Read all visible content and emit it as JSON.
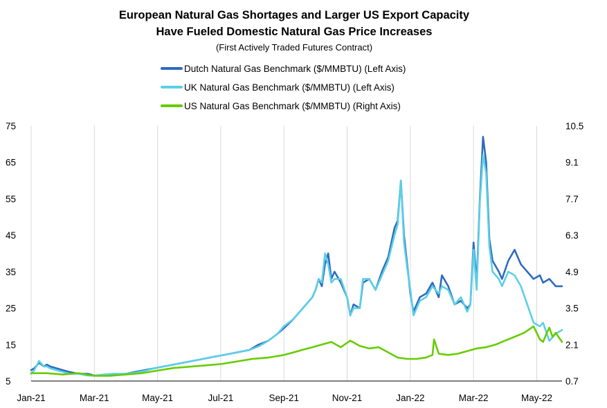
{
  "chart_data": {
    "type": "line",
    "title": [
      "European Natural Gas Shortages and Larger US Export Capacity",
      "Have Fueled Domestic Natural Gas Price Increases"
    ],
    "subtitle": "(First Actively Traded Futures Contract)",
    "left_axis": {
      "ticks": [
        "5",
        "15",
        "25",
        "35",
        "45",
        "55",
        "65",
        "75"
      ],
      "ylim": [
        5,
        75
      ]
    },
    "right_axis": {
      "ticks": [
        "0.7",
        "2.1",
        "3.5",
        "4.9",
        "6.3",
        "7.7",
        "9.1",
        "10.5"
      ],
      "ylim": [
        0.7,
        10.5
      ]
    },
    "x_axis": {
      "xlim": [
        0,
        16.8
      ],
      "tick_positions": [
        0,
        2,
        4,
        6,
        8,
        10,
        12,
        14,
        16
      ],
      "tick_labels": [
        "Jan-21",
        "Mar-21",
        "May-21",
        "Jul-21",
        "Sep-21",
        "Nov-21",
        "Jan-22",
        "Mar-22",
        "May-22"
      ]
    },
    "grid": "vertical",
    "x_unit": "months since Jan-21",
    "series": [
      {
        "name": "Dutch Natural Gas Benchmark ($/MMBTU) (Left Axis)",
        "axis": "left",
        "color": "#2e6bbf",
        "x": [
          0,
          0.1,
          0.25,
          0.4,
          0.5,
          0.6,
          0.8,
          1.0,
          1.2,
          1.5,
          1.8,
          2.0,
          2.3,
          2.6,
          3.0,
          3.3,
          3.6,
          3.9,
          4.2,
          4.5,
          4.8,
          5.1,
          5.4,
          5.7,
          6.0,
          6.3,
          6.6,
          6.9,
          7.2,
          7.5,
          7.8,
          8.0,
          8.3,
          8.6,
          8.9,
          9.0,
          9.1,
          9.2,
          9.3,
          9.4,
          9.5,
          9.6,
          9.8,
          10.0,
          10.1,
          10.2,
          10.4,
          10.5,
          10.7,
          10.9,
          11.1,
          11.3,
          11.5,
          11.6,
          11.7,
          11.8,
          11.9,
          12.0,
          12.1,
          12.3,
          12.5,
          12.7,
          12.9,
          13.0,
          13.2,
          13.4,
          13.6,
          13.8,
          13.9,
          14.0,
          14.1,
          14.2,
          14.3,
          14.4,
          14.5,
          14.6,
          14.8,
          14.9,
          15.1,
          15.3,
          15.5,
          15.7,
          15.9,
          16.1,
          16.2,
          16.4,
          16.6,
          16.8
        ],
        "values": [
          8,
          8.5,
          10,
          9,
          9.5,
          9,
          8.5,
          8,
          7.5,
          7,
          7,
          6.5,
          6.5,
          6.8,
          7,
          7.5,
          8,
          8.5,
          9,
          9.5,
          10,
          10.5,
          11,
          11.5,
          12,
          12.5,
          13,
          13.5,
          15,
          16,
          18,
          19.5,
          22,
          25,
          28,
          30,
          33,
          31,
          37,
          40,
          33,
          35,
          32,
          28,
          23,
          26,
          25,
          32,
          33,
          30,
          35,
          39,
          47,
          49,
          60,
          45,
          37,
          29,
          24,
          28,
          29,
          32,
          28,
          34,
          31,
          26,
          27,
          25,
          26,
          43,
          32,
          55,
          72,
          65,
          44,
          38,
          35,
          33,
          38,
          41,
          37,
          35,
          33,
          34,
          32,
          33,
          31,
          31
        ]
      },
      {
        "name": "UK Natural Gas Benchmark ($/MMBTU) (Left Axis)",
        "axis": "left",
        "color": "#5ccfe6",
        "x": [
          0,
          0.1,
          0.25,
          0.4,
          0.5,
          0.6,
          0.8,
          1.0,
          1.2,
          1.5,
          1.8,
          2.0,
          2.3,
          2.6,
          3.0,
          3.3,
          3.6,
          3.9,
          4.2,
          4.5,
          4.8,
          5.1,
          5.4,
          5.7,
          6.0,
          6.3,
          6.6,
          6.9,
          7.2,
          7.5,
          7.8,
          8.0,
          8.3,
          8.6,
          8.9,
          9.0,
          9.1,
          9.2,
          9.3,
          9.4,
          9.5,
          9.6,
          9.8,
          10.0,
          10.1,
          10.2,
          10.4,
          10.5,
          10.7,
          10.9,
          11.1,
          11.3,
          11.5,
          11.6,
          11.7,
          11.8,
          11.9,
          12.0,
          12.1,
          12.3,
          12.5,
          12.7,
          12.9,
          13.0,
          13.2,
          13.4,
          13.6,
          13.8,
          13.9,
          14.0,
          14.1,
          14.2,
          14.3,
          14.4,
          14.5,
          14.6,
          14.8,
          14.9,
          15.1,
          15.3,
          15.5,
          15.7,
          15.9,
          16.1,
          16.2,
          16.4,
          16.6,
          16.8
        ],
        "values": [
          7,
          8,
          10.5,
          9,
          9,
          8.5,
          8,
          7.5,
          7,
          7,
          6.5,
          6.5,
          6.8,
          7,
          7,
          7.3,
          7.8,
          8.5,
          9,
          9.5,
          10,
          10.5,
          11,
          11.5,
          12,
          12.5,
          13,
          13.5,
          14.5,
          16,
          18,
          20,
          22,
          25,
          28,
          30,
          33,
          32,
          40,
          37,
          32,
          33,
          33,
          28,
          23,
          25,
          25,
          33,
          33,
          30,
          34,
          38,
          45,
          48,
          60,
          43,
          36,
          30,
          23,
          27,
          28,
          31,
          29,
          31,
          30,
          26,
          28,
          24,
          26,
          41,
          30,
          54,
          67,
          62,
          42,
          35,
          33,
          31,
          35,
          34,
          31,
          26,
          21,
          20,
          21,
          16,
          18,
          19
        ]
      },
      {
        "name": "US Natural Gas Benchmark ($/MMBTU) (Right Axis)",
        "axis": "right",
        "color": "#66cc00",
        "x": [
          0,
          0.5,
          1.0,
          1.5,
          2.0,
          2.5,
          3.0,
          3.5,
          4.0,
          4.5,
          5.0,
          5.5,
          6.0,
          6.5,
          7.0,
          7.5,
          8.0,
          8.3,
          8.6,
          8.9,
          9.2,
          9.5,
          9.8,
          10.1,
          10.4,
          10.7,
          11.0,
          11.3,
          11.6,
          11.9,
          12.2,
          12.5,
          12.7,
          12.75,
          12.9,
          13.2,
          13.5,
          13.8,
          14.1,
          14.4,
          14.7,
          15.0,
          15.3,
          15.6,
          15.9,
          16.1,
          16.2,
          16.3,
          16.4,
          16.5,
          16.6,
          16.8
        ],
        "values": [
          1.0,
          1.0,
          0.95,
          1.0,
          0.9,
          0.9,
          0.95,
          1.0,
          1.1,
          1.2,
          1.25,
          1.3,
          1.35,
          1.45,
          1.55,
          1.6,
          1.7,
          1.8,
          1.9,
          2.0,
          2.1,
          2.2,
          2.0,
          2.25,
          2.05,
          1.95,
          2.0,
          1.8,
          1.6,
          1.55,
          1.55,
          1.6,
          1.7,
          2.3,
          1.75,
          1.7,
          1.75,
          1.85,
          1.95,
          2.0,
          2.1,
          2.25,
          2.4,
          2.55,
          2.8,
          2.3,
          2.2,
          2.5,
          2.75,
          2.4,
          2.55,
          2.2
        ]
      }
    ]
  }
}
